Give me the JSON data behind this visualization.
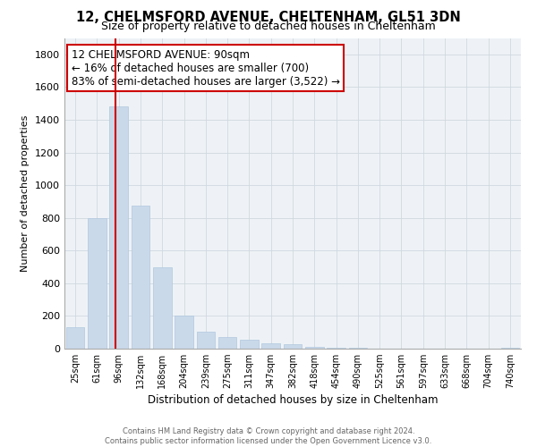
{
  "title": "12, CHELMSFORD AVENUE, CHELTENHAM, GL51 3DN",
  "subtitle": "Size of property relative to detached houses in Cheltenham",
  "xlabel": "Distribution of detached houses by size in Cheltenham",
  "ylabel": "Number of detached properties",
  "categories": [
    "25sqm",
    "61sqm",
    "96sqm",
    "132sqm",
    "168sqm",
    "204sqm",
    "239sqm",
    "275sqm",
    "311sqm",
    "347sqm",
    "382sqm",
    "418sqm",
    "454sqm",
    "490sqm",
    "525sqm",
    "561sqm",
    "597sqm",
    "633sqm",
    "668sqm",
    "704sqm",
    "740sqm"
  ],
  "values": [
    130,
    800,
    1480,
    875,
    500,
    205,
    105,
    70,
    52,
    35,
    28,
    10,
    5,
    3,
    2,
    1,
    1,
    0,
    0,
    0,
    5
  ],
  "bar_color": "#c9d9ea",
  "bar_edge_color": "#b0c8de",
  "vline_color": "#cc0000",
  "annotation_title": "12 CHELMSFORD AVENUE: 90sqm",
  "annotation_line1": "← 16% of detached houses are smaller (700)",
  "annotation_line2": "83% of semi-detached houses are larger (3,522) →",
  "annotation_box_color": "#ffffff",
  "annotation_box_edge": "#cc0000",
  "ylim": [
    0,
    1900
  ],
  "yticks": [
    0,
    200,
    400,
    600,
    800,
    1000,
    1200,
    1400,
    1600,
    1800
  ],
  "footer_line1": "Contains HM Land Registry data © Crown copyright and database right 2024.",
  "footer_line2": "Contains public sector information licensed under the Open Government Licence v3.0.",
  "grid_color": "#d0d8e0",
  "background_color": "#eef2f6",
  "title_fontsize": 10.5,
  "subtitle_fontsize": 9
}
